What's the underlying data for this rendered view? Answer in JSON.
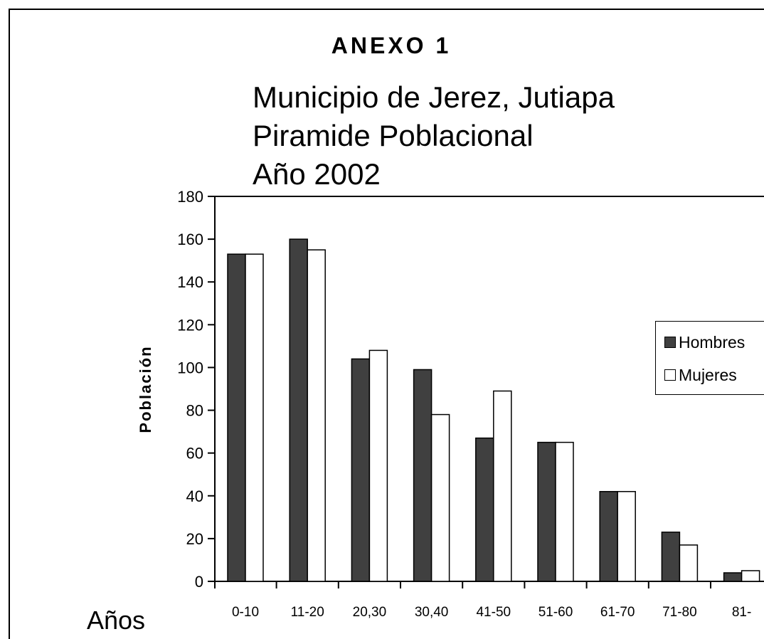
{
  "header": {
    "anexo": "ANEXO 1"
  },
  "chart_data": {
    "type": "bar",
    "title": [
      "Municipio de Jerez, Jutiapa",
      "Piramide Poblacional",
      "Año 2002"
    ],
    "xlabel": "Años",
    "ylabel": "Población",
    "ylim": [
      0,
      180
    ],
    "yticks": [
      0,
      20,
      40,
      60,
      80,
      100,
      120,
      140,
      160,
      180
    ],
    "grid": false,
    "legend_position": "right",
    "categories": [
      "0-10",
      "11-20",
      "20,30",
      "30,40",
      "41-50",
      "51-60",
      "61-70",
      "71-80",
      "81-"
    ],
    "series": [
      {
        "name": "Hombres",
        "color": "#404040",
        "values": [
          153,
          160,
          104,
          99,
          67,
          65,
          42,
          23,
          4
        ]
      },
      {
        "name": "Mujeres",
        "color": "#ffffff",
        "values": [
          153,
          155,
          108,
          78,
          89,
          65,
          42,
          17,
          5
        ]
      }
    ]
  }
}
